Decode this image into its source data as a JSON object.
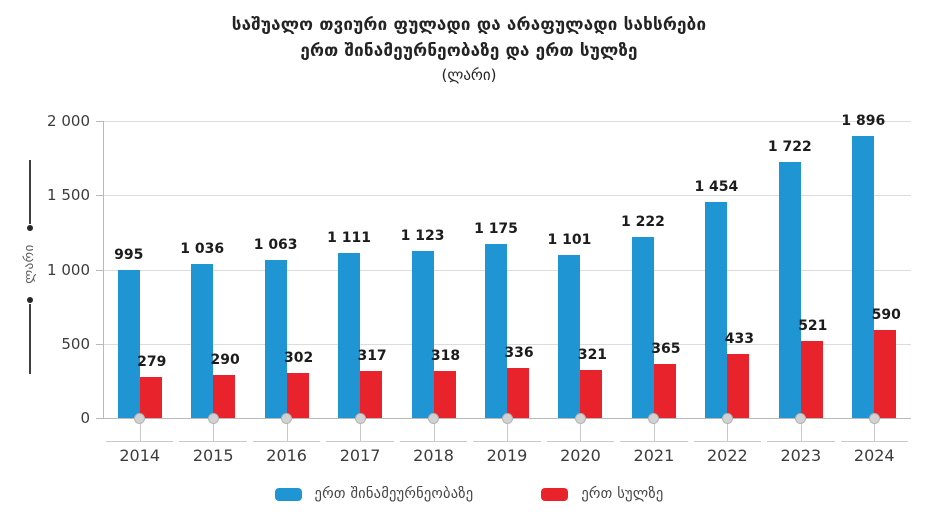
{
  "title": {
    "line1": "საშუალო თვიური ფულადი და არაფულადი სახსრები",
    "line2": "ერთ შინამეურნეობაზე და ერთ სულზე",
    "line3": "(ლარი)"
  },
  "chart_data": {
    "type": "bar",
    "title": "საშუალო თვიური ფულადი და არაფულადი სახსრები ერთ შინამეურნეობაზე და ერთ სულზე",
    "unit_label": "(ლარი)",
    "categories": [
      "2014",
      "2015",
      "2016",
      "2017",
      "2018",
      "2019",
      "2020",
      "2021",
      "2022",
      "2023",
      "2024"
    ],
    "series": [
      {
        "name": "ერთ შინამეურნეობაზე",
        "color": "#2095D3",
        "values": [
          995,
          1036,
          1063,
          1111,
          1123,
          1175,
          1101,
          1222,
          1454,
          1722,
          1896
        ],
        "labels": [
          "995",
          "1 036",
          "1 063",
          "1 111",
          "1 123",
          "1 175",
          "1 101",
          "1 222",
          "1 454",
          "1 722",
          "1 896"
        ]
      },
      {
        "name": "ერთ სულზე",
        "color": "#E8232B",
        "values": [
          279,
          290,
          302,
          317,
          318,
          336,
          321,
          365,
          433,
          521,
          590
        ],
        "labels": [
          "279",
          "290",
          "302",
          "317",
          "318",
          "336",
          "321",
          "365",
          "433",
          "521",
          "590"
        ]
      }
    ],
    "ylabel": "ლარი",
    "ylim": [
      0,
      2000
    ],
    "yticks": [
      0,
      500,
      1000,
      1500,
      2000
    ],
    "ytick_labels": [
      "0",
      "500",
      "1 000",
      "1 500",
      "2 000"
    ],
    "grid": true,
    "legend_position": "bottom"
  },
  "colors": {
    "grid": "#dcdcdc",
    "axis": "#b9b9b9",
    "dot_fill": "#d2d2d2",
    "dot_border": "#b3b3b3"
  }
}
